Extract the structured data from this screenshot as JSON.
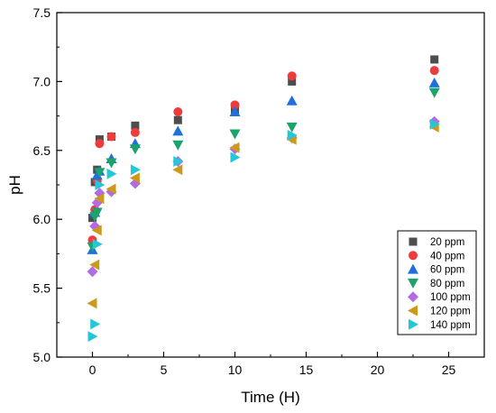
{
  "chart_data": {
    "type": "scatter",
    "xlabel": "Time (H)",
    "ylabel": "pH",
    "xlim": [
      -2.5,
      27.5
    ],
    "ylim": [
      5.0,
      7.5
    ],
    "x_ticks": [
      0,
      5,
      10,
      15,
      20,
      25
    ],
    "y_ticks": [
      5.0,
      5.5,
      6.0,
      6.5,
      7.0,
      7.5
    ],
    "x_tick_labels": [
      "0",
      "5",
      "10",
      "15",
      "20",
      "25"
    ],
    "y_tick_labels": [
      "5.0",
      "5.5",
      "6.0",
      "6.5",
      "7.0",
      "7.5"
    ],
    "grid": false,
    "legend_position": "right",
    "series": [
      {
        "name": "20 ppm",
        "marker": "square",
        "color": "#4d4d4d",
        "x": [
          0,
          0.17,
          0.33,
          0.5,
          1.33,
          3,
          6,
          10,
          14,
          24
        ],
        "y": [
          6.01,
          6.27,
          6.36,
          6.58,
          6.6,
          6.68,
          6.72,
          6.79,
          7.0,
          7.16
        ]
      },
      {
        "name": "40 ppm",
        "marker": "circle",
        "color": "#ee3b3b",
        "x": [
          0,
          0.17,
          0.33,
          0.5,
          1.33,
          3,
          6,
          10,
          14,
          24
        ],
        "y": [
          5.85,
          6.07,
          6.28,
          6.55,
          6.6,
          6.63,
          6.78,
          6.83,
          7.04,
          7.08
        ]
      },
      {
        "name": "60 ppm",
        "marker": "triangle-up",
        "color": "#1f6fdc",
        "x": [
          0,
          0.17,
          0.33,
          0.5,
          1.33,
          3,
          6,
          10,
          14,
          24
        ],
        "y": [
          5.78,
          6.05,
          6.32,
          6.35,
          6.44,
          6.55,
          6.64,
          6.78,
          6.86,
          6.99
        ]
      },
      {
        "name": "80 ppm",
        "marker": "triangle-down",
        "color": "#1aa36b",
        "x": [
          0,
          0.17,
          0.33,
          0.5,
          1.33,
          3,
          6,
          10,
          14,
          24
        ],
        "y": [
          5.8,
          6.02,
          6.05,
          6.34,
          6.41,
          6.51,
          6.54,
          6.62,
          6.67,
          6.92
        ]
      },
      {
        "name": "100 ppm",
        "marker": "diamond",
        "color": "#b36be3",
        "x": [
          0,
          0.17,
          0.33,
          0.5,
          1.33,
          3,
          6,
          10,
          14,
          24
        ],
        "y": [
          5.62,
          5.95,
          6.12,
          6.19,
          6.2,
          6.26,
          6.42,
          6.51,
          6.59,
          6.71
        ]
      },
      {
        "name": "120 ppm",
        "marker": "triangle-left",
        "color": "#cc9a1a",
        "x": [
          0,
          0.17,
          0.33,
          0.5,
          1.33,
          3,
          6,
          10,
          14,
          24
        ],
        "y": [
          5.39,
          5.67,
          5.92,
          6.15,
          6.22,
          6.3,
          6.36,
          6.52,
          6.58,
          6.67
        ]
      },
      {
        "name": "140 ppm",
        "marker": "triangle-right",
        "color": "#22c8d9",
        "x": [
          0,
          0.17,
          0.33,
          0.5,
          1.33,
          3,
          6,
          10,
          14,
          24
        ],
        "y": [
          5.15,
          5.24,
          5.82,
          6.25,
          6.33,
          6.36,
          6.42,
          6.45,
          6.61,
          6.69
        ]
      }
    ]
  }
}
